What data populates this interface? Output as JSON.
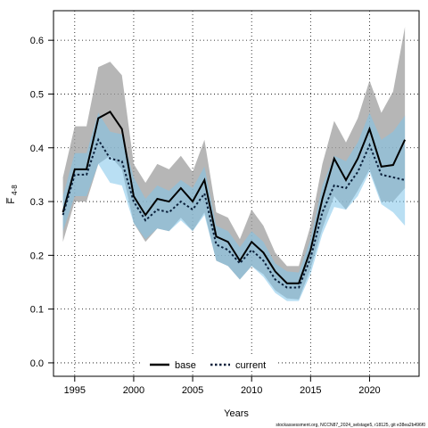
{
  "chart_data": {
    "type": "line",
    "xlabel": "Years",
    "ylabel": "F̅",
    "ylabel_subscript": "4-8",
    "xlim": [
      1993.2,
      2024.2
    ],
    "ylim": [
      -0.025,
      0.655
    ],
    "xticks": [
      1995,
      2000,
      2005,
      2010,
      2015,
      2020
    ],
    "yticks": [
      0.0,
      0.1,
      0.2,
      0.3,
      0.4,
      0.5,
      0.6
    ],
    "ytick_labels": [
      "0.0",
      "0.1",
      "0.2",
      "0.3",
      "0.4",
      "0.5",
      "0.6"
    ],
    "grid": true,
    "legend_position": "bottom-center",
    "x": [
      1994,
      1995,
      1996,
      1997,
      1998,
      1999,
      2000,
      2001,
      2002,
      2003,
      2004,
      2005,
      2006,
      2007,
      2008,
      2009,
      2010,
      2011,
      2012,
      2013,
      2014,
      2015,
      2016,
      2017,
      2018,
      2019,
      2020,
      2021,
      2022,
      2023
    ],
    "series": [
      {
        "name": "base",
        "color": "#000000",
        "band_color": "#9e9e9e",
        "values": [
          0.28,
          0.36,
          0.36,
          0.455,
          0.467,
          0.435,
          0.31,
          0.275,
          0.305,
          0.3,
          0.325,
          0.3,
          0.34,
          0.235,
          0.225,
          0.19,
          0.225,
          0.205,
          0.17,
          0.148,
          0.148,
          0.21,
          0.305,
          0.38,
          0.34,
          0.38,
          0.435,
          0.365,
          0.368,
          0.415
        ],
        "lower": [
          0.225,
          0.3,
          0.3,
          0.37,
          0.385,
          0.36,
          0.26,
          0.225,
          0.25,
          0.245,
          0.27,
          0.245,
          0.28,
          0.19,
          0.18,
          0.155,
          0.18,
          0.165,
          0.135,
          0.12,
          0.118,
          0.175,
          0.25,
          0.31,
          0.285,
          0.32,
          0.36,
          0.3,
          0.3,
          0.325
        ],
        "upper": [
          0.345,
          0.44,
          0.44,
          0.55,
          0.56,
          0.535,
          0.37,
          0.335,
          0.37,
          0.36,
          0.385,
          0.355,
          0.415,
          0.28,
          0.27,
          0.23,
          0.285,
          0.255,
          0.205,
          0.18,
          0.18,
          0.255,
          0.37,
          0.45,
          0.41,
          0.455,
          0.525,
          0.465,
          0.505,
          0.625
        ]
      },
      {
        "name": "current",
        "color": "#0a1f3a",
        "band_color": "#7fc4ea",
        "values": [
          0.275,
          0.35,
          0.35,
          0.415,
          0.38,
          0.375,
          0.3,
          0.265,
          0.285,
          0.28,
          0.3,
          0.285,
          0.315,
          0.22,
          0.21,
          0.185,
          0.21,
          0.19,
          0.155,
          0.14,
          0.14,
          0.195,
          0.28,
          0.33,
          0.325,
          0.355,
          0.405,
          0.35,
          0.345,
          0.34
        ],
        "lower": [
          0.245,
          0.31,
          0.31,
          0.37,
          0.335,
          0.33,
          0.26,
          0.23,
          0.25,
          0.245,
          0.265,
          0.245,
          0.275,
          0.19,
          0.18,
          0.155,
          0.18,
          0.16,
          0.13,
          0.115,
          0.115,
          0.165,
          0.24,
          0.29,
          0.285,
          0.31,
          0.355,
          0.295,
          0.28,
          0.255
        ],
        "upper": [
          0.31,
          0.39,
          0.39,
          0.465,
          0.43,
          0.425,
          0.345,
          0.305,
          0.33,
          0.32,
          0.34,
          0.325,
          0.365,
          0.255,
          0.245,
          0.215,
          0.245,
          0.225,
          0.185,
          0.17,
          0.168,
          0.23,
          0.33,
          0.385,
          0.375,
          0.41,
          0.465,
          0.415,
          0.43,
          0.46
        ]
      }
    ],
    "footnote": "stockassessment.org, NCCN87_2024_selstage5, r18125, git e38ea2b496f0"
  }
}
